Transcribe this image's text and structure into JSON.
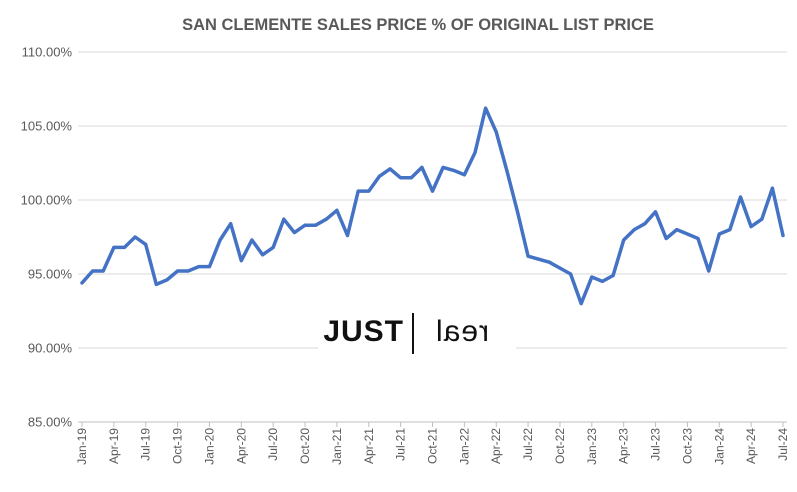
{
  "colors": {
    "series": "#4472C4",
    "text": "#595959",
    "grid": "#d9d9d9",
    "logo": "#111111"
  },
  "logo": {
    "left_word": "JUST",
    "right_word": "real"
  },
  "chart_data": {
    "type": "line",
    "title": "SAN CLEMENTE SALES PRICE % OF ORIGINAL LIST PRICE",
    "xlabel": "",
    "ylabel": "",
    "ylim": [
      85,
      110
    ],
    "y_ticks": [
      85,
      90,
      95,
      100,
      105,
      110
    ],
    "y_tick_labels": [
      "85.00%",
      "90.00%",
      "95.00%",
      "100.00%",
      "105.00%",
      "110.00%"
    ],
    "grid": true,
    "legend": "none",
    "x": [
      "Jan-19",
      "Feb-19",
      "Mar-19",
      "Apr-19",
      "May-19",
      "Jun-19",
      "Jul-19",
      "Aug-19",
      "Sep-19",
      "Oct-19",
      "Nov-19",
      "Dec-19",
      "Jan-20",
      "Feb-20",
      "Mar-20",
      "Apr-20",
      "May-20",
      "Jun-20",
      "Jul-20",
      "Aug-20",
      "Sep-20",
      "Oct-20",
      "Nov-20",
      "Dec-20",
      "Jan-21",
      "Feb-21",
      "Mar-21",
      "Apr-21",
      "May-21",
      "Jun-21",
      "Jul-21",
      "Aug-21",
      "Sep-21",
      "Oct-21",
      "Nov-21",
      "Dec-21",
      "Jan-22",
      "Feb-22",
      "Mar-22",
      "Apr-22",
      "May-22",
      "Jun-22",
      "Jul-22",
      "Aug-22",
      "Sep-22",
      "Oct-22",
      "Nov-22",
      "Dec-22",
      "Jan-23",
      "Feb-23",
      "Mar-23",
      "Apr-23",
      "May-23",
      "Jun-23",
      "Jul-23",
      "Aug-23",
      "Sep-23",
      "Oct-23",
      "Nov-23",
      "Dec-23",
      "Jan-24",
      "Feb-24",
      "Mar-24",
      "Apr-24",
      "May-24",
      "Jun-24",
      "Jul-24"
    ],
    "x_tick_labels": [
      "Jan-19",
      "Apr-19",
      "Jul-19",
      "Oct-19",
      "Jan-20",
      "Apr-20",
      "Jul-20",
      "Oct-20",
      "Jan-21",
      "Apr-21",
      "Jul-21",
      "Oct-21",
      "Jan-22",
      "Apr-22",
      "Jul-22",
      "Oct-22",
      "Jan-23",
      "Apr-23",
      "Jul-23",
      "Oct-23",
      "Jan-24",
      "Apr-24",
      "Jul-24"
    ],
    "series": [
      {
        "values": [
          94.4,
          95.2,
          95.2,
          96.8,
          96.8,
          97.5,
          97.0,
          94.3,
          94.6,
          95.2,
          95.2,
          95.5,
          95.5,
          97.3,
          98.4,
          95.9,
          97.3,
          96.3,
          96.8,
          98.7,
          97.8,
          98.3,
          98.3,
          98.7,
          99.3,
          97.6,
          100.6,
          100.6,
          101.6,
          102.1,
          101.5,
          101.5,
          102.2,
          100.6,
          102.2,
          102.0,
          101.7,
          103.2,
          106.2,
          104.6,
          102.0,
          99.2,
          96.2,
          96.0,
          95.8,
          95.4,
          95.0,
          93.0,
          94.8,
          94.5,
          94.9,
          97.3,
          98.0,
          98.4,
          99.2,
          97.4,
          98.0,
          97.7,
          97.4,
          95.2,
          97.7,
          98.0,
          100.2,
          98.2,
          98.7,
          100.8,
          97.6
        ]
      }
    ]
  }
}
